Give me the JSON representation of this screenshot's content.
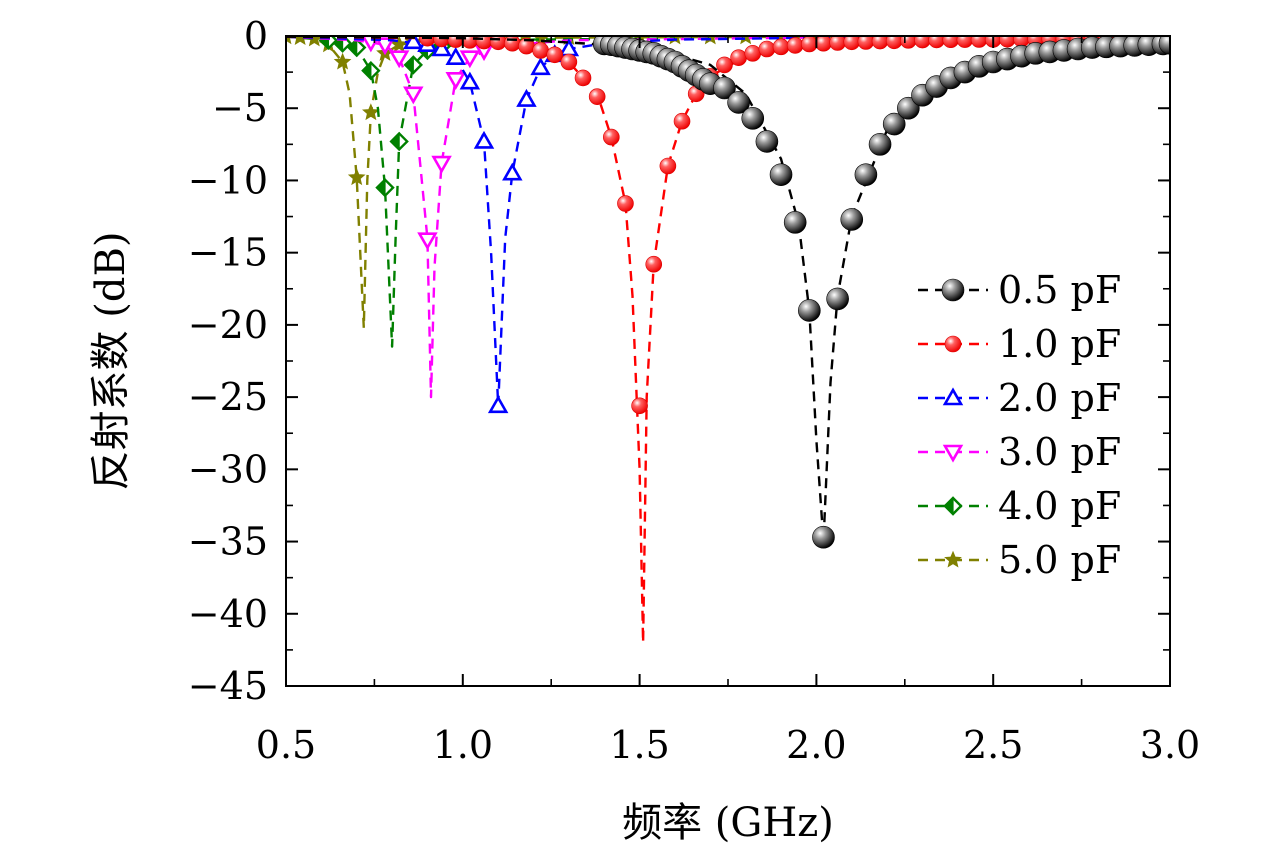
{
  "chart_data": {
    "type": "line",
    "title": "",
    "xlabel": "频率 (GHz)",
    "ylabel": "反射系数 (dB)",
    "xlim": [
      0.5,
      3.0
    ],
    "ylim": [
      -45,
      0
    ],
    "xticks": [
      "0.5",
      "1.0",
      "1.5",
      "2.0",
      "2.5",
      "3.0"
    ],
    "yticks": [
      "0",
      "−5",
      "−10",
      "−15",
      "−20",
      "−25",
      "−30",
      "−35",
      "−40",
      "−45"
    ],
    "grid": false,
    "legend_position": "right",
    "series": [
      {
        "name": "0.5 pF",
        "color": "#000000",
        "marker": "sphere",
        "line": [
          [
            0.5,
            -0.05
          ],
          [
            0.8,
            -0.1
          ],
          [
            1.0,
            -0.15
          ],
          [
            1.2,
            -0.3
          ],
          [
            1.4,
            -0.6
          ],
          [
            1.6,
            -1.3
          ],
          [
            1.7,
            -2.0
          ],
          [
            1.8,
            -4.0
          ],
          [
            1.9,
            -8.5
          ],
          [
            1.95,
            -13
          ],
          [
            1.98,
            -19
          ],
          [
            2.0,
            -28
          ],
          [
            2.02,
            -35
          ],
          [
            2.04,
            -24
          ],
          [
            2.06,
            -18
          ],
          [
            2.1,
            -12.5
          ],
          [
            2.2,
            -6.5
          ],
          [
            2.3,
            -4.0
          ],
          [
            2.5,
            -2.0
          ],
          [
            2.7,
            -1.3
          ],
          [
            3.0,
            -0.6
          ]
        ],
        "markers": [
          [
            1.4,
            -0.55
          ],
          [
            1.42,
            -0.6
          ],
          [
            1.44,
            -0.7
          ],
          [
            1.46,
            -0.8
          ],
          [
            1.48,
            -0.9
          ],
          [
            1.5,
            -1.0
          ],
          [
            1.52,
            -1.1
          ],
          [
            1.54,
            -1.2
          ],
          [
            1.56,
            -1.4
          ],
          [
            1.58,
            -1.6
          ],
          [
            1.6,
            -1.8
          ],
          [
            1.62,
            -2.1
          ],
          [
            1.64,
            -2.4
          ],
          [
            1.66,
            -2.7
          ],
          [
            1.68,
            -3.0
          ],
          [
            1.7,
            -3.3
          ],
          [
            1.74,
            -3.6
          ],
          [
            1.78,
            -4.6
          ],
          [
            1.82,
            -5.7
          ],
          [
            1.86,
            -7.3
          ],
          [
            1.9,
            -9.6
          ],
          [
            1.94,
            -12.9
          ],
          [
            1.98,
            -19.0
          ],
          [
            2.02,
            -34.7
          ],
          [
            2.06,
            -18.2
          ],
          [
            2.1,
            -12.7
          ],
          [
            2.14,
            -9.6
          ],
          [
            2.18,
            -7.5
          ],
          [
            2.22,
            -6.1
          ],
          [
            2.26,
            -5.0
          ],
          [
            2.3,
            -4.1
          ],
          [
            2.34,
            -3.5
          ],
          [
            2.38,
            -2.9
          ],
          [
            2.42,
            -2.5
          ],
          [
            2.46,
            -2.1
          ],
          [
            2.5,
            -1.8
          ],
          [
            2.54,
            -1.6
          ],
          [
            2.58,
            -1.4
          ],
          [
            2.62,
            -1.2
          ],
          [
            2.66,
            -1.1
          ],
          [
            2.7,
            -1.0
          ],
          [
            2.74,
            -0.9
          ],
          [
            2.78,
            -0.8
          ],
          [
            2.82,
            -0.75
          ],
          [
            2.86,
            -0.7
          ],
          [
            2.9,
            -0.65
          ],
          [
            2.94,
            -0.6
          ],
          [
            2.98,
            -0.55
          ],
          [
            3.0,
            -0.5
          ]
        ]
      },
      {
        "name": "1.0 pF",
        "color": "#ff0000",
        "marker": "circle",
        "line": [
          [
            0.5,
            -0.05
          ],
          [
            0.9,
            -0.15
          ],
          [
            1.1,
            -0.4
          ],
          [
            1.2,
            -0.8
          ],
          [
            1.3,
            -1.8
          ],
          [
            1.38,
            -4.0
          ],
          [
            1.42,
            -7.0
          ],
          [
            1.46,
            -11.6
          ],
          [
            1.48,
            -18
          ],
          [
            1.5,
            -30
          ],
          [
            1.51,
            -42
          ],
          [
            1.52,
            -25
          ],
          [
            1.54,
            -15.8
          ],
          [
            1.58,
            -9.0
          ],
          [
            1.62,
            -5.9
          ],
          [
            1.66,
            -4.0
          ],
          [
            1.7,
            -2.8
          ],
          [
            1.8,
            -1.4
          ],
          [
            2.0,
            -0.6
          ],
          [
            2.5,
            -0.3
          ],
          [
            3.0,
            -0.2
          ]
        ],
        "markers": [
          [
            0.9,
            -0.15
          ],
          [
            0.94,
            -0.2
          ],
          [
            0.98,
            -0.25
          ],
          [
            1.02,
            -0.3
          ],
          [
            1.06,
            -0.35
          ],
          [
            1.1,
            -0.4
          ],
          [
            1.14,
            -0.5
          ],
          [
            1.18,
            -0.7
          ],
          [
            1.22,
            -1.0
          ],
          [
            1.26,
            -1.3
          ],
          [
            1.3,
            -1.8
          ],
          [
            1.34,
            -2.9
          ],
          [
            1.38,
            -4.2
          ],
          [
            1.42,
            -7.0
          ],
          [
            1.46,
            -11.6
          ],
          [
            1.5,
            -25.6
          ],
          [
            1.54,
            -15.8
          ],
          [
            1.58,
            -9.0
          ],
          [
            1.62,
            -5.9
          ],
          [
            1.66,
            -4.0
          ],
          [
            1.7,
            -2.8
          ],
          [
            1.74,
            -2.0
          ],
          [
            1.78,
            -1.5
          ],
          [
            1.82,
            -1.2
          ],
          [
            1.86,
            -0.9
          ],
          [
            1.9,
            -0.75
          ],
          [
            1.94,
            -0.65
          ],
          [
            1.98,
            -0.55
          ],
          [
            2.02,
            -0.5
          ],
          [
            2.06,
            -0.45
          ],
          [
            2.1,
            -0.4
          ],
          [
            2.14,
            -0.38
          ],
          [
            2.18,
            -0.35
          ],
          [
            2.22,
            -0.33
          ],
          [
            2.26,
            -0.3
          ],
          [
            2.3,
            -0.28
          ],
          [
            2.34,
            -0.27
          ],
          [
            2.38,
            -0.26
          ],
          [
            2.42,
            -0.25
          ],
          [
            2.46,
            -0.24
          ],
          [
            2.5,
            -0.23
          ],
          [
            2.54,
            -0.22
          ],
          [
            2.58,
            -0.21
          ],
          [
            2.62,
            -0.2
          ],
          [
            2.66,
            -0.2
          ],
          [
            2.7,
            -0.19
          ],
          [
            2.74,
            -0.18
          ],
          [
            2.78,
            -0.18
          ],
          [
            2.82,
            -0.17
          ],
          [
            2.86,
            -0.17
          ],
          [
            2.9,
            -0.16
          ],
          [
            2.94,
            -0.16
          ],
          [
            2.98,
            -0.15
          ]
        ]
      },
      {
        "name": "2.0 pF",
        "color": "#0000ff",
        "marker": "triangle-up",
        "line": [
          [
            0.5,
            -0.05
          ],
          [
            0.8,
            -0.3
          ],
          [
            0.9,
            -0.6
          ],
          [
            0.98,
            -1.5
          ],
          [
            1.02,
            -3.2
          ],
          [
            1.06,
            -7.3
          ],
          [
            1.08,
            -15
          ],
          [
            1.1,
            -25.6
          ],
          [
            1.12,
            -14
          ],
          [
            1.14,
            -9.5
          ],
          [
            1.18,
            -4.4
          ],
          [
            1.22,
            -2.2
          ],
          [
            1.26,
            -1.3
          ],
          [
            1.3,
            -0.9
          ],
          [
            1.4,
            -0.5
          ],
          [
            1.6,
            -0.25
          ],
          [
            2.0,
            -0.12
          ],
          [
            3.0,
            -0.05
          ]
        ],
        "markers": [
          [
            0.86,
            -0.4
          ],
          [
            0.9,
            -0.6
          ],
          [
            0.94,
            -0.9
          ],
          [
            0.98,
            -1.5
          ],
          [
            1.02,
            -3.2
          ],
          [
            1.06,
            -7.3
          ],
          [
            1.1,
            -25.6
          ],
          [
            1.14,
            -9.5
          ],
          [
            1.18,
            -4.4
          ],
          [
            1.22,
            -2.2
          ],
          [
            1.26,
            -1.3
          ],
          [
            1.3,
            -0.9
          ]
        ]
      },
      {
        "name": "3.0 pF",
        "color": "#ff00ff",
        "marker": "triangle-down",
        "line": [
          [
            0.5,
            -0.05
          ],
          [
            0.7,
            -0.3
          ],
          [
            0.78,
            -0.6
          ],
          [
            0.82,
            -1.5
          ],
          [
            0.86,
            -4.0
          ],
          [
            0.88,
            -9
          ],
          [
            0.9,
            -14
          ],
          [
            0.91,
            -25
          ],
          [
            0.92,
            -16
          ],
          [
            0.94,
            -8.8
          ],
          [
            0.98,
            -3.0
          ],
          [
            1.02,
            -1.5
          ],
          [
            1.1,
            -0.7
          ],
          [
            1.3,
            -0.3
          ],
          [
            2.0,
            -0.1
          ],
          [
            3.0,
            -0.05
          ]
        ],
        "markers": [
          [
            0.74,
            -0.4
          ],
          [
            0.78,
            -0.6
          ],
          [
            0.82,
            -1.5
          ],
          [
            0.86,
            -4.0
          ],
          [
            0.9,
            -14.1
          ],
          [
            0.94,
            -8.8
          ],
          [
            0.98,
            -3.0
          ],
          [
            1.02,
            -1.5
          ],
          [
            1.06,
            -1.0
          ]
        ]
      },
      {
        "name": "4.0 pF",
        "color": "#008000",
        "marker": "diamond-half",
        "line": [
          [
            0.5,
            -0.05
          ],
          [
            0.64,
            -0.3
          ],
          [
            0.7,
            -0.8
          ],
          [
            0.74,
            -2.4
          ],
          [
            0.76,
            -5
          ],
          [
            0.78,
            -10.5
          ],
          [
            0.8,
            -21.5
          ],
          [
            0.81,
            -14
          ],
          [
            0.82,
            -7.3
          ],
          [
            0.86,
            -2.0
          ],
          [
            0.9,
            -1.0
          ],
          [
            1.0,
            -0.5
          ],
          [
            1.2,
            -0.25
          ],
          [
            2.0,
            -0.1
          ],
          [
            3.0,
            -0.05
          ]
        ],
        "markers": [
          [
            0.62,
            -0.3
          ],
          [
            0.66,
            -0.5
          ],
          [
            0.7,
            -0.8
          ],
          [
            0.74,
            -2.4
          ],
          [
            0.78,
            -10.5
          ],
          [
            0.82,
            -7.3
          ],
          [
            0.86,
            -2.0
          ],
          [
            0.9,
            -1.0
          ],
          [
            0.94,
            -0.7
          ]
        ]
      },
      {
        "name": "5.0 pF",
        "color": "#808000",
        "marker": "star",
        "line": [
          [
            0.5,
            -0.05
          ],
          [
            0.58,
            -0.2
          ],
          [
            0.62,
            -0.6
          ],
          [
            0.66,
            -1.8
          ],
          [
            0.68,
            -4
          ],
          [
            0.7,
            -9.8
          ],
          [
            0.72,
            -20.2
          ],
          [
            0.73,
            -10
          ],
          [
            0.74,
            -5.3
          ],
          [
            0.76,
            -2.5
          ],
          [
            0.78,
            -1.2
          ],
          [
            0.82,
            -0.6
          ],
          [
            0.9,
            -0.3
          ],
          [
            1.2,
            -0.12
          ],
          [
            2.0,
            -0.05
          ],
          [
            3.0,
            -0.03
          ]
        ],
        "markers": [
          [
            0.5,
            -0.05
          ],
          [
            0.54,
            -0.1
          ],
          [
            0.58,
            -0.2
          ],
          [
            0.62,
            -0.6
          ],
          [
            0.66,
            -1.8
          ],
          [
            0.7,
            -9.8
          ],
          [
            0.74,
            -5.3
          ],
          [
            0.78,
            -1.2
          ],
          [
            0.82,
            -0.6
          ],
          [
            0.86,
            -0.4
          ],
          [
            0.9,
            -0.3
          ],
          [
            0.98,
            -0.2
          ],
          [
            1.06,
            -0.15
          ],
          [
            1.14,
            -0.12
          ],
          [
            1.22,
            -0.1
          ],
          [
            1.3,
            -0.1
          ],
          [
            1.4,
            -0.08
          ],
          [
            1.5,
            -0.07
          ],
          [
            1.6,
            -0.06
          ],
          [
            1.7,
            -0.06
          ],
          [
            1.8,
            -0.05
          ],
          [
            1.9,
            -0.05
          ],
          [
            2.0,
            -0.05
          ],
          [
            2.1,
            -0.04
          ],
          [
            2.2,
            -0.04
          ],
          [
            2.3,
            -0.04
          ],
          [
            2.4,
            -0.04
          ],
          [
            2.5,
            -0.03
          ],
          [
            2.6,
            -0.03
          ],
          [
            2.7,
            -0.03
          ],
          [
            2.8,
            -0.03
          ],
          [
            2.9,
            -0.03
          ],
          [
            3.0,
            -0.03
          ]
        ]
      }
    ]
  }
}
